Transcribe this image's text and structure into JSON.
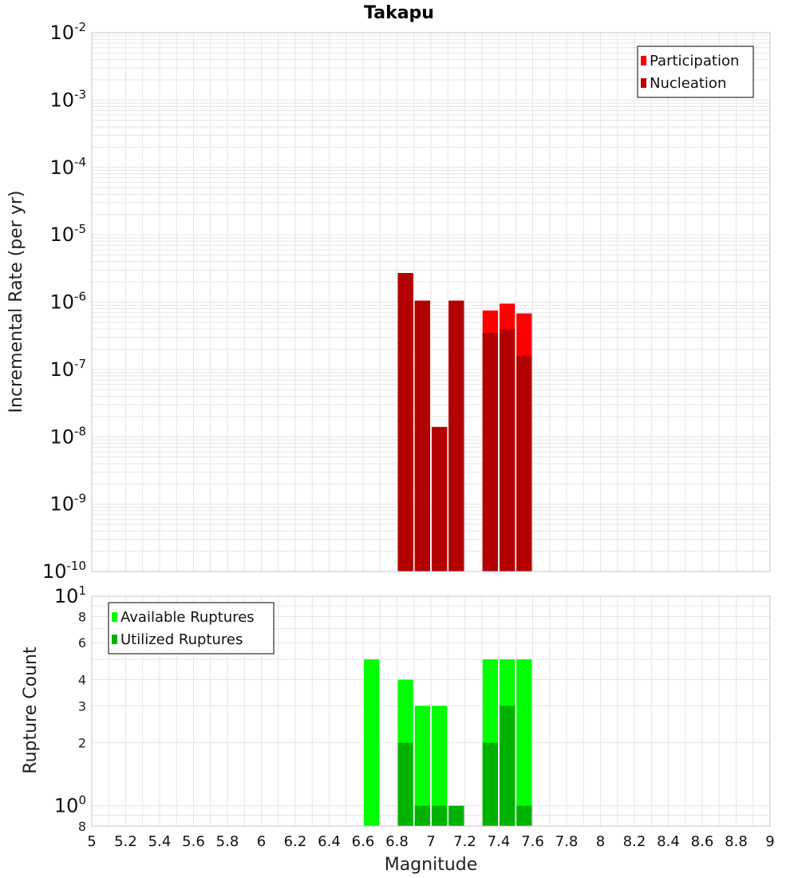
{
  "colors": {
    "participation": "#ff0000",
    "nucleation": "#b30000",
    "available": "#00ff00",
    "utilized": "#00b200",
    "grid": "#e6e6e6",
    "frame": "#c8c8c8"
  },
  "chart_data": [
    {
      "type": "bar",
      "scale": "log",
      "title": "Takapu",
      "ylabel": "Incremental Rate (per yr)",
      "xlim": [
        5,
        9
      ],
      "ylim": [
        1e-10,
        0.01
      ],
      "grid": true,
      "legend_position": "top-right",
      "bar_width": 0.1,
      "major_ticks": [
        {
          "value": 1e-10,
          "base": "10",
          "exp": "-10"
        },
        {
          "value": 1e-09,
          "base": "10",
          "exp": "-9"
        },
        {
          "value": 1e-08,
          "base": "10",
          "exp": "-8"
        },
        {
          "value": 1e-07,
          "base": "10",
          "exp": "-7"
        },
        {
          "value": 1e-06,
          "base": "10",
          "exp": "-6"
        },
        {
          "value": 1e-05,
          "base": "10",
          "exp": "-5"
        },
        {
          "value": 0.0001,
          "base": "10",
          "exp": "-4"
        },
        {
          "value": 0.001,
          "base": "10",
          "exp": "-3"
        },
        {
          "value": 0.01,
          "base": "10",
          "exp": "-2"
        }
      ],
      "series": [
        {
          "name": "Participation",
          "color": "#ff0000",
          "x": [
            6.85,
            6.95,
            7.05,
            7.15,
            7.35,
            7.45,
            7.55
          ],
          "values": [
            2.7e-06,
            1.05e-06,
            1.4e-08,
            1.05e-06,
            7.5e-07,
            9.5e-07,
            6.8e-07
          ]
        },
        {
          "name": "Nucleation",
          "color": "#b30000",
          "x": [
            6.85,
            6.95,
            7.05,
            7.15,
            7.35,
            7.45,
            7.55
          ],
          "values": [
            2.7e-06,
            1.05e-06,
            1.4e-08,
            1.05e-06,
            3.5e-07,
            4e-07,
            1.6e-07
          ]
        }
      ]
    },
    {
      "type": "bar",
      "scale": "log",
      "ylabel": "Rupture Count",
      "xlabel": "Magnitude",
      "xlim": [
        5,
        9
      ],
      "ylim": [
        0.8,
        10
      ],
      "grid": true,
      "legend_position": "top-left",
      "bar_width": 0.1,
      "x_ticks": [
        "5",
        "5.2",
        "5.4",
        "5.6",
        "5.8",
        "6",
        "6.2",
        "6.4",
        "6.6",
        "6.8",
        "7",
        "7.2",
        "7.4",
        "7.6",
        "7.8",
        "8",
        "8.2",
        "8.4",
        "8.6",
        "8.8",
        "9"
      ],
      "major_ticks": [
        {
          "value": 1,
          "base": "10",
          "exp": "0"
        },
        {
          "value": 10,
          "base": "10",
          "exp": "1"
        }
      ],
      "minor_ticks": [
        {
          "value": 0.8,
          "label": "8"
        },
        {
          "value": 2,
          "label": "2"
        },
        {
          "value": 3,
          "label": "3"
        },
        {
          "value": 4,
          "label": "4"
        },
        {
          "value": 6,
          "label": "6"
        },
        {
          "value": 8,
          "label": "8"
        }
      ],
      "series": [
        {
          "name": "Available Ruptures",
          "color": "#00ff00",
          "x": [
            6.65,
            6.85,
            6.95,
            7.05,
            7.15,
            7.35,
            7.45,
            7.55
          ],
          "values": [
            5,
            4,
            3,
            3,
            1,
            5,
            5,
            5
          ]
        },
        {
          "name": "Utilized Ruptures",
          "color": "#00b200",
          "x": [
            6.65,
            6.85,
            6.95,
            7.05,
            7.15,
            7.35,
            7.45,
            7.55
          ],
          "values": [
            0,
            2,
            1,
            1,
            1,
            2,
            3,
            1
          ]
        }
      ]
    }
  ]
}
